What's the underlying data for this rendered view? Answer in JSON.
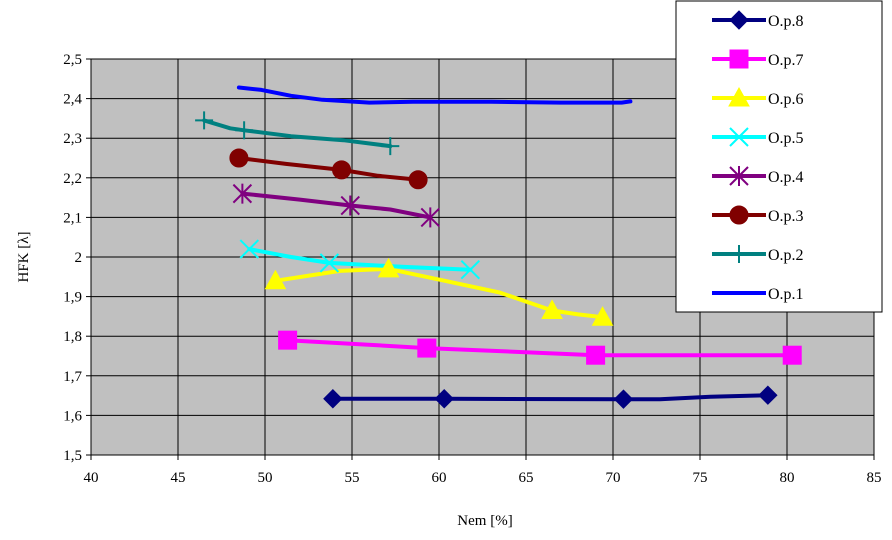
{
  "chart_data": {
    "type": "line",
    "title": "",
    "xlabel": "Nem [%]",
    "ylabel": "HFK [λ]",
    "xlim": [
      40,
      85
    ],
    "ylim": [
      1.5,
      2.5
    ],
    "x_ticks": [
      40,
      45,
      50,
      55,
      60,
      65,
      70,
      75,
      80,
      85
    ],
    "x_tick_labels": [
      "40",
      "45",
      "50",
      "55",
      "60",
      "65",
      "70",
      "75",
      "80",
      "85"
    ],
    "y_ticks": [
      1.5,
      1.6,
      1.7,
      1.8,
      1.9,
      2.0,
      2.1,
      2.2,
      2.3,
      2.4,
      2.5
    ],
    "y_tick_labels": [
      "1,5",
      "1,6",
      "1,7",
      "1,8",
      "1,9",
      "2",
      "2,1",
      "2,2",
      "2,3",
      "2,4",
      "2,5"
    ],
    "grid": true,
    "plot_background": "#c0c0c0",
    "legend_position": "top-right",
    "series": [
      {
        "name": "O.p.8",
        "color": "#000080",
        "marker": "diamond",
        "points": [
          [
            53.9,
            1.642
          ],
          [
            60.3,
            1.642
          ],
          [
            70.6,
            1.641
          ],
          [
            72.7,
            1.641
          ],
          [
            75.6,
            1.647
          ],
          [
            78.9,
            1.651
          ]
        ],
        "marked": [
          0,
          1,
          2,
          5
        ]
      },
      {
        "name": "O.p.7",
        "color": "#ff00ff",
        "marker": "square",
        "points": [
          [
            51.3,
            1.79
          ],
          [
            59.3,
            1.77
          ],
          [
            69.0,
            1.752
          ],
          [
            80.3,
            1.752
          ]
        ],
        "marked": [
          0,
          1,
          2,
          3
        ]
      },
      {
        "name": "O.p.6",
        "color": "#ffff00",
        "marker": "triangle",
        "points": [
          [
            50.6,
            1.94
          ],
          [
            54.3,
            1.965
          ],
          [
            57.1,
            1.97
          ],
          [
            59.8,
            1.945
          ],
          [
            63.5,
            1.91
          ],
          [
            66.5,
            1.865
          ],
          [
            68.0,
            1.855
          ],
          [
            69.4,
            1.848
          ]
        ],
        "marked": [
          0,
          2,
          5,
          7
        ]
      },
      {
        "name": "O.p.5",
        "color": "#00ffff",
        "marker": "x",
        "points": [
          [
            49.1,
            2.02
          ],
          [
            51.5,
            2.0
          ],
          [
            53.7,
            1.985
          ],
          [
            58.0,
            1.975
          ],
          [
            61.8,
            1.968
          ]
        ],
        "marked": [
          0,
          2,
          4
        ]
      },
      {
        "name": "O.p.4",
        "color": "#800080",
        "marker": "star",
        "points": [
          [
            48.7,
            2.16
          ],
          [
            52.0,
            2.145
          ],
          [
            54.9,
            2.13
          ],
          [
            57.2,
            2.12
          ],
          [
            59.5,
            2.1
          ]
        ],
        "marked": [
          0,
          2,
          4
        ]
      },
      {
        "name": "O.p.3",
        "color": "#800000",
        "marker": "circle",
        "points": [
          [
            48.5,
            2.25
          ],
          [
            51.2,
            2.235
          ],
          [
            54.4,
            2.22
          ],
          [
            56.5,
            2.205
          ],
          [
            58.8,
            2.195
          ]
        ],
        "marked": [
          0,
          2,
          4
        ]
      },
      {
        "name": "O.p.2",
        "color": "#008080",
        "marker": "plus",
        "points": [
          [
            46.5,
            2.345
          ],
          [
            48.0,
            2.325
          ],
          [
            48.8,
            2.32
          ],
          [
            51.5,
            2.305
          ],
          [
            54.5,
            2.295
          ],
          [
            57.2,
            2.28
          ]
        ],
        "marked": [
          0,
          2,
          5
        ]
      },
      {
        "name": "O.p.1",
        "color": "#0000ff",
        "marker": "none",
        "points": [
          [
            48.5,
            2.428
          ],
          [
            49.8,
            2.422
          ],
          [
            51.5,
            2.407
          ],
          [
            53.3,
            2.397
          ],
          [
            56.0,
            2.39
          ],
          [
            58.5,
            2.392
          ],
          [
            63.0,
            2.392
          ],
          [
            67.0,
            2.39
          ],
          [
            70.5,
            2.39
          ],
          [
            71.0,
            2.393
          ]
        ],
        "marked": []
      }
    ]
  }
}
